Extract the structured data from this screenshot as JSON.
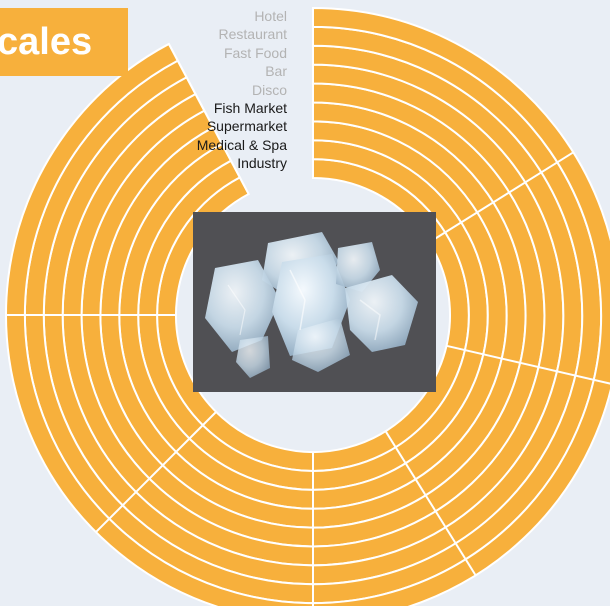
{
  "title": "cales",
  "categories": [
    {
      "label": "Hotel",
      "active": false
    },
    {
      "label": "Restaurant",
      "active": false
    },
    {
      "label": "Fast Food",
      "active": false
    },
    {
      "label": "Bar",
      "active": false
    },
    {
      "label": "Disco",
      "active": false
    },
    {
      "label": "Fish Market",
      "active": true
    },
    {
      "label": "Supermarket",
      "active": true
    },
    {
      "label": "Medical & Spa",
      "active": true
    },
    {
      "label": "Industry",
      "active": true
    }
  ],
  "colors": {
    "accent": "#f7b03c",
    "background": "#e9eef5",
    "photo_background": "#505054",
    "ice": "#c9dcea",
    "muted_text": "#b3b3b3",
    "active_text": "#1a1a1a"
  },
  "center_image": "ice-crystals-photo"
}
